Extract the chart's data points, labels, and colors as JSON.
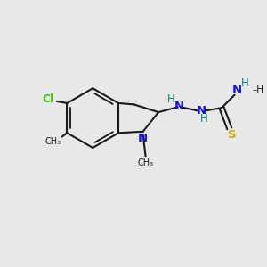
{
  "bg_color": "#e8e8e8",
  "bond_color": "#1a1a1a",
  "cl_color": "#33cc00",
  "n_color": "#1414e0",
  "s_color": "#ccaa00",
  "nh_color": "#008888",
  "figsize": [
    3.0,
    3.0
  ],
  "dpi": 100,
  "xlim": [
    0,
    10
  ],
  "ylim": [
    0,
    10
  ]
}
